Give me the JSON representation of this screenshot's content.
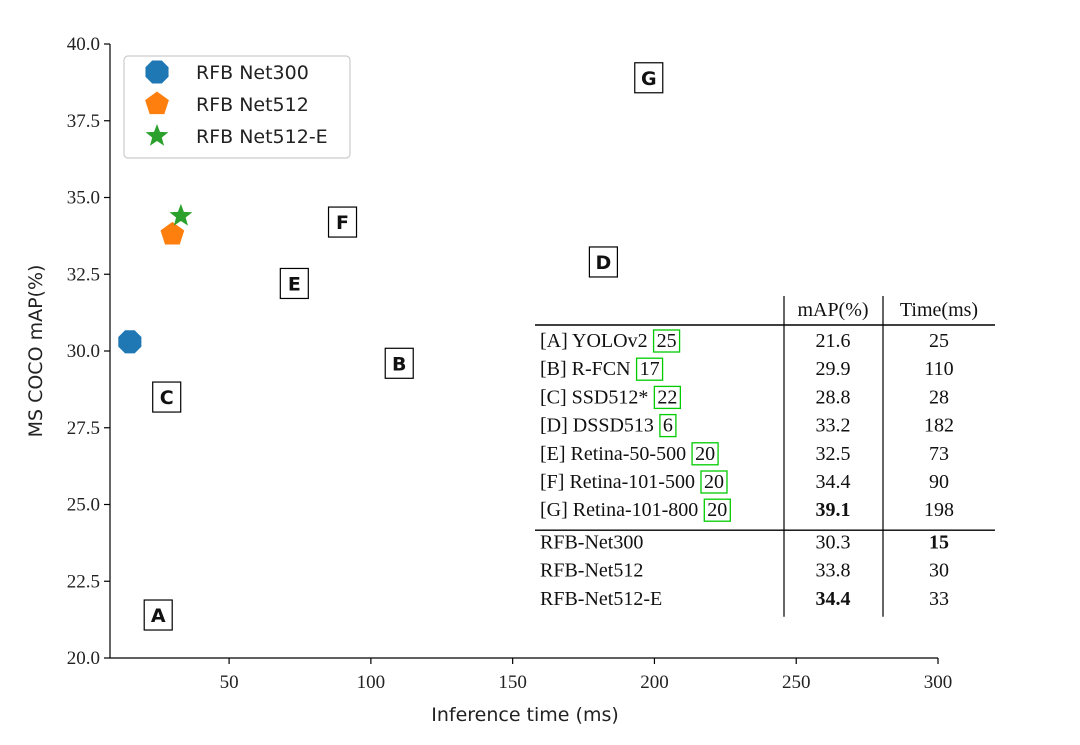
{
  "chart_data": {
    "type": "scatter",
    "xlabel": "Inference time (ms)",
    "ylabel": "MS COCO mAP(%)",
    "xlim": [
      8,
      300
    ],
    "ylim": [
      20.0,
      40.0
    ],
    "x_ticks": [
      "50",
      "100",
      "150",
      "200",
      "250",
      "300"
    ],
    "y_ticks": [
      "20.0",
      "22.5",
      "25.0",
      "27.5",
      "30.0",
      "32.5",
      "35.0",
      "37.5",
      "40.0"
    ],
    "legend_position": "top-left",
    "series": [
      {
        "name": "RFB Net300",
        "marker": "octagon",
        "color": "#1f77b4",
        "x": 15,
        "y": 30.3
      },
      {
        "name": "RFB Net512",
        "marker": "pentagon",
        "color": "#ff7f0e",
        "x": 30,
        "y": 33.8
      },
      {
        "name": "RFB Net512-E",
        "marker": "star",
        "color": "#2ca02c",
        "x": 33,
        "y": 34.4
      }
    ],
    "annotations": [
      {
        "label": "A",
        "x": 25,
        "y": 21.4
      },
      {
        "label": "B",
        "x": 110,
        "y": 29.6
      },
      {
        "label": "C",
        "x": 28,
        "y": 28.5
      },
      {
        "label": "D",
        "x": 182,
        "y": 32.9
      },
      {
        "label": "E",
        "x": 73,
        "y": 32.2
      },
      {
        "label": "F",
        "x": 90,
        "y": 34.2
      },
      {
        "label": "G",
        "x": 198,
        "y": 38.9
      }
    ],
    "table": {
      "headers": [
        "mAP(%)",
        "Time(ms)"
      ],
      "rows": [
        {
          "tag": "[A]",
          "name": "YOLOv2",
          "ref": "25",
          "map": "21.6",
          "time": "25",
          "map_bold": false,
          "time_bold": false
        },
        {
          "tag": "[B]",
          "name": "R-FCN",
          "ref": "17",
          "map": "29.9",
          "time": "110",
          "map_bold": false,
          "time_bold": false
        },
        {
          "tag": "[C]",
          "name": "SSD512*",
          "ref": "22",
          "map": "28.8",
          "time": "28",
          "map_bold": false,
          "time_bold": false
        },
        {
          "tag": "[D]",
          "name": "DSSD513",
          "ref": "6",
          "map": "33.2",
          "time": "182",
          "map_bold": false,
          "time_bold": false
        },
        {
          "tag": "[E]",
          "name": "Retina-50-500",
          "ref": "20",
          "map": "32.5",
          "time": "73",
          "map_bold": false,
          "time_bold": false
        },
        {
          "tag": "[F]",
          "name": "Retina-101-500",
          "ref": "20",
          "map": "34.4",
          "time": "90",
          "map_bold": false,
          "time_bold": false
        },
        {
          "tag": "[G]",
          "name": "Retina-101-800",
          "ref": "20",
          "map": "39.1",
          "time": "198",
          "map_bold": true,
          "time_bold": false
        },
        {
          "tag": "",
          "name": "RFB-Net300",
          "ref": "",
          "map": "30.3",
          "time": "15",
          "map_bold": false,
          "time_bold": true
        },
        {
          "tag": "",
          "name": "RFB-Net512",
          "ref": "",
          "map": "33.8",
          "time": "30",
          "map_bold": false,
          "time_bold": false
        },
        {
          "tag": "",
          "name": "RFB-Net512-E",
          "ref": "",
          "map": "34.4",
          "time": "33",
          "map_bold": true,
          "time_bold": false
        }
      ],
      "ref_box_color": "#00cc00"
    }
  }
}
